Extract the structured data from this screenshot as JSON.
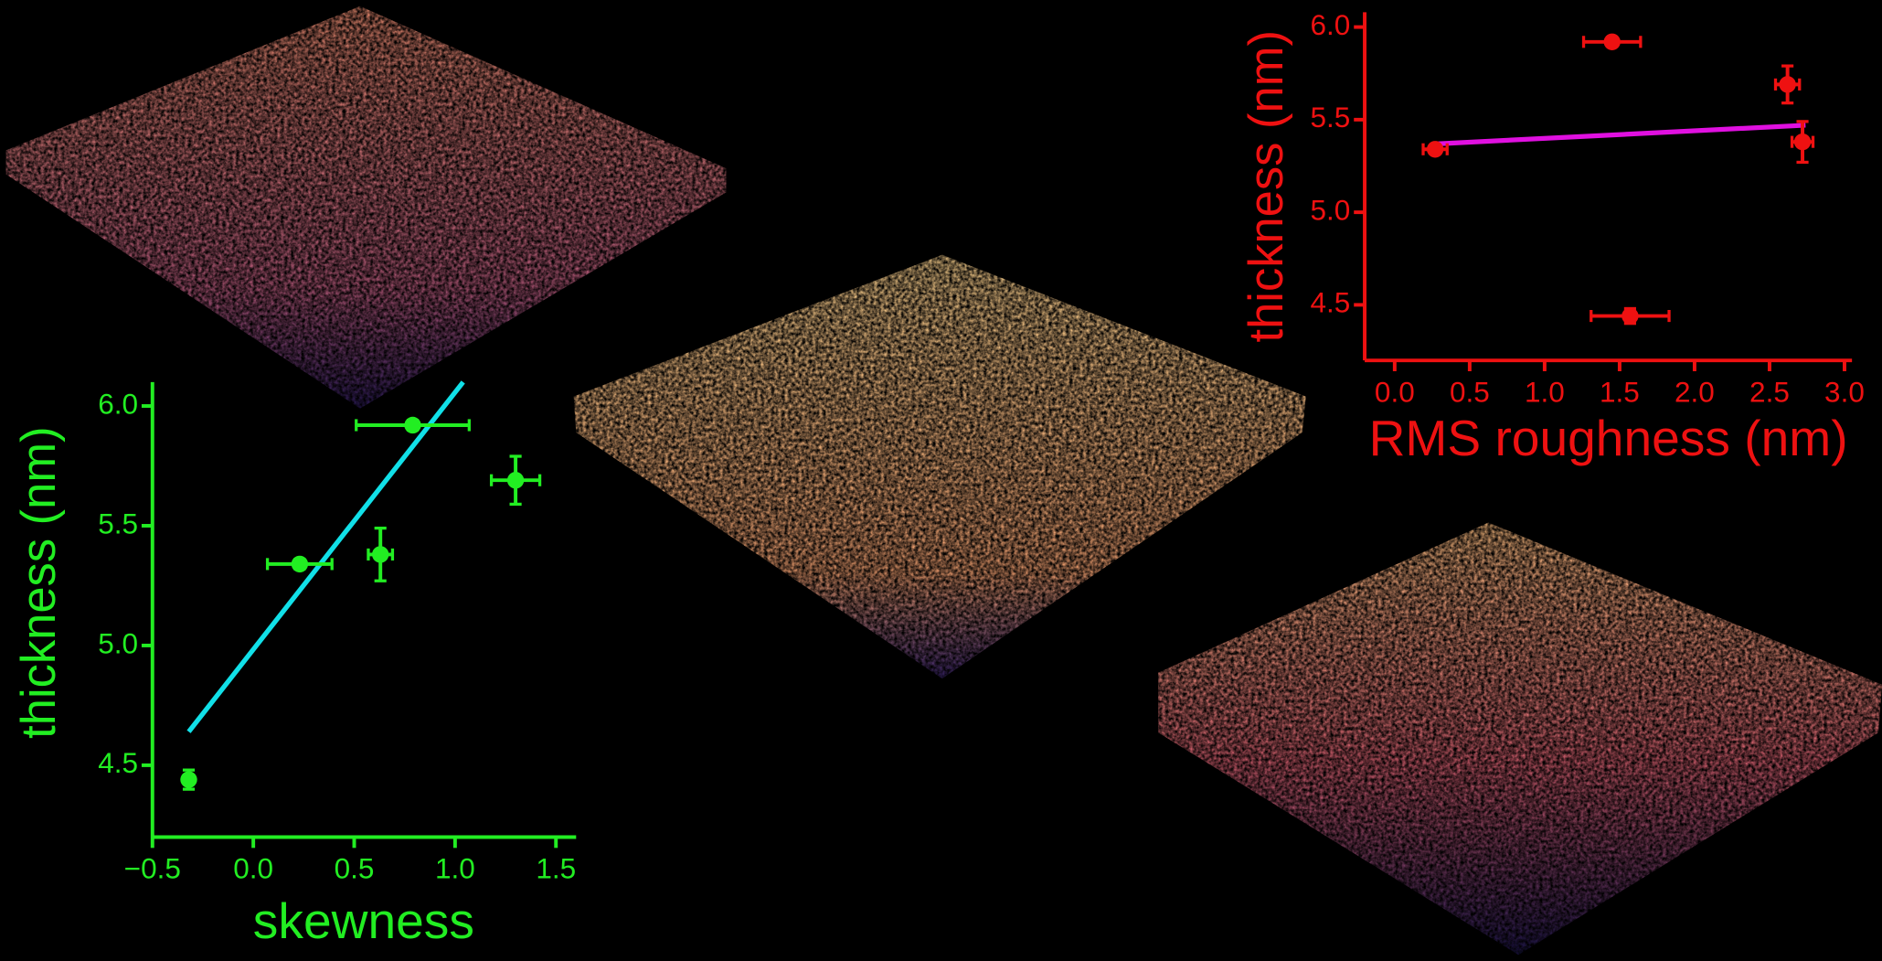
{
  "chart_data": [
    {
      "type": "scatter",
      "color": "#22ee22",
      "x_label": "skewness",
      "y_label": "thickness (nm)",
      "x": [
        -0.32,
        0.23,
        0.63,
        0.79,
        1.3
      ],
      "x_error": [
        0.02,
        0.16,
        0.06,
        0.28,
        0.12
      ],
      "values": [
        4.44,
        5.34,
        5.38,
        5.92,
        5.69
      ],
      "y_error": [
        0.04,
        0.02,
        0.11,
        0.02,
        0.1
      ],
      "fit": {
        "color": "#11e0e8",
        "x": [
          -0.32,
          1.04
        ],
        "y": [
          4.64,
          6.1
        ]
      },
      "xlim": [
        -0.5,
        1.6
      ],
      "xticks": [
        {
          "value": -0.5,
          "label": "−0.5"
        },
        {
          "value": 0,
          "label": "0.0"
        },
        0.5,
        {
          "value": 1,
          "label": "1.0"
        },
        1.5
      ],
      "ylim": [
        4.2,
        6.1
      ],
      "yticks": [
        4.5,
        {
          "value": 5,
          "label": "5.0"
        },
        5.5,
        {
          "value": 6,
          "label": "6.0"
        }
      ]
    },
    {
      "type": "scatter",
      "color": "#ee1111",
      "x_label": "RMS roughness (nm)",
      "y_label": "thickness (nm)",
      "x": [
        0.27,
        1.45,
        1.57,
        2.62,
        2.72
      ],
      "x_error": [
        0.08,
        0.19,
        0.26,
        0.08,
        0.07
      ],
      "values": [
        5.34,
        5.92,
        4.44,
        5.69,
        5.38
      ],
      "y_error": [
        0.02,
        0.02,
        0.04,
        0.1,
        0.11
      ],
      "fit": {
        "color": "#e010e0",
        "x": [
          0.29,
          2.74
        ],
        "y": [
          5.37,
          5.47
        ]
      },
      "xlim": [
        -0.2,
        3.05
      ],
      "xticks": [
        {
          "value": 0,
          "label": "0.0"
        },
        0.5,
        {
          "value": 1,
          "label": "1.0"
        },
        1.5,
        {
          "value": 2,
          "label": "2.0"
        },
        2.5,
        {
          "value": 3,
          "label": "3.0"
        }
      ],
      "ylim": [
        4.2,
        6.08
      ],
      "yticks": [
        4.5,
        {
          "value": 5,
          "label": "5.0"
        },
        5.5,
        {
          "value": 6,
          "label": "6.0"
        }
      ]
    }
  ]
}
